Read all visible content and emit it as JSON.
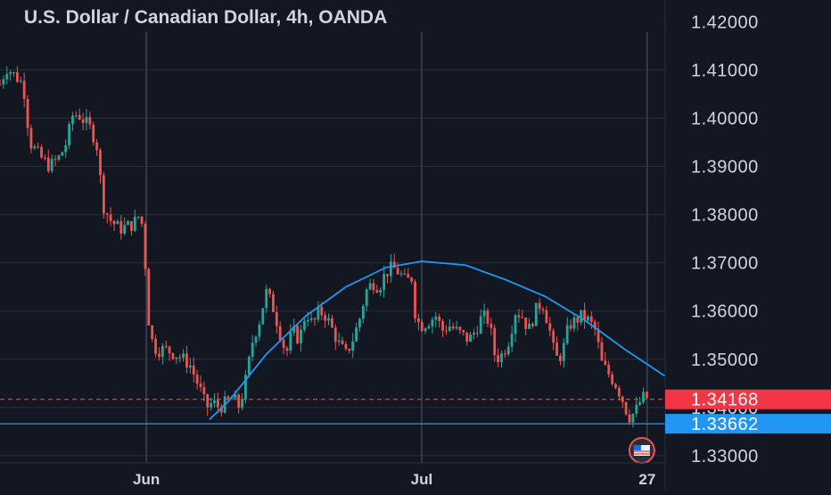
{
  "chart_data": {
    "type": "candlestick",
    "title": "U.S. Dollar / Canadian Dollar, 4h, OANDA",
    "y_axis": {
      "ticks": [
        "1.42000",
        "1.41000",
        "1.40000",
        "1.39000",
        "1.38000",
        "1.37000",
        "1.36000",
        "1.35000",
        "1.34000",
        "1.33000"
      ],
      "ylim": [
        1.3285,
        1.4245
      ]
    },
    "x_axis": {
      "ticks": [
        {
          "label": "Jun",
          "position": 0.22
        },
        {
          "label": "Jul",
          "position": 0.634
        },
        {
          "label": "27",
          "position": 0.973
        }
      ]
    },
    "grid": true,
    "vertical_grid_positions": [
      0.22,
      0.634,
      0.973
    ],
    "series": [
      {
        "name": "",
        "close_path": [
          [
            0.0,
            1.407
          ],
          [
            0.01,
            1.4105
          ],
          [
            0.025,
            1.4085
          ],
          [
            0.035,
            1.407
          ],
          [
            0.045,
            1.395
          ],
          [
            0.06,
            1.392
          ],
          [
            0.075,
            1.39
          ],
          [
            0.09,
            1.392
          ],
          [
            0.1,
            1.395
          ],
          [
            0.11,
            1.401
          ],
          [
            0.12,
            1.4005
          ],
          [
            0.135,
            1.398
          ],
          [
            0.145,
            1.395
          ],
          [
            0.155,
            1.382
          ],
          [
            0.165,
            1.379
          ],
          [
            0.18,
            1.377
          ],
          [
            0.2,
            1.378
          ],
          [
            0.21,
            1.38
          ],
          [
            0.215,
            1.377
          ],
          [
            0.225,
            1.355
          ],
          [
            0.235,
            1.352
          ],
          [
            0.25,
            1.352
          ],
          [
            0.265,
            1.351
          ],
          [
            0.285,
            1.349
          ],
          [
            0.3,
            1.344
          ],
          [
            0.31,
            1.34
          ],
          [
            0.32,
            1.341
          ],
          [
            0.33,
            1.34
          ],
          [
            0.34,
            1.341
          ],
          [
            0.35,
            1.342
          ],
          [
            0.36,
            1.34
          ],
          [
            0.37,
            1.346
          ],
          [
            0.38,
            1.354
          ],
          [
            0.39,
            1.358
          ],
          [
            0.4,
            1.364
          ],
          [
            0.41,
            1.361
          ],
          [
            0.42,
            1.356
          ],
          [
            0.43,
            1.351
          ],
          [
            0.44,
            1.356
          ],
          [
            0.45,
            1.354
          ],
          [
            0.46,
            1.36
          ],
          [
            0.47,
            1.357
          ],
          [
            0.48,
            1.36
          ],
          [
            0.49,
            1.359
          ],
          [
            0.5,
            1.356
          ],
          [
            0.51,
            1.353
          ],
          [
            0.52,
            1.351
          ],
          [
            0.53,
            1.354
          ],
          [
            0.54,
            1.358
          ],
          [
            0.55,
            1.364
          ],
          [
            0.56,
            1.366
          ],
          [
            0.57,
            1.365
          ],
          [
            0.58,
            1.368
          ],
          [
            0.59,
            1.369
          ],
          [
            0.6,
            1.368
          ],
          [
            0.61,
            1.366
          ],
          [
            0.62,
            1.367
          ],
          [
            0.625,
            1.358
          ],
          [
            0.635,
            1.357
          ],
          [
            0.645,
            1.358
          ],
          [
            0.655,
            1.359
          ],
          [
            0.665,
            1.356
          ],
          [
            0.675,
            1.357
          ],
          [
            0.685,
            1.356
          ],
          [
            0.695,
            1.355
          ],
          [
            0.705,
            1.354
          ],
          [
            0.715,
            1.356
          ],
          [
            0.725,
            1.359
          ],
          [
            0.735,
            1.358
          ],
          [
            0.745,
            1.35
          ],
          [
            0.755,
            1.351
          ],
          [
            0.765,
            1.354
          ],
          [
            0.775,
            1.36
          ],
          [
            0.785,
            1.359
          ],
          [
            0.795,
            1.356
          ],
          [
            0.805,
            1.36
          ],
          [
            0.815,
            1.362
          ],
          [
            0.825,
            1.357
          ],
          [
            0.835,
            1.35
          ],
          [
            0.845,
            1.351
          ],
          [
            0.855,
            1.357
          ],
          [
            0.865,
            1.358
          ],
          [
            0.875,
            1.359
          ],
          [
            0.885,
            1.358
          ],
          [
            0.895,
            1.356
          ],
          [
            0.905,
            1.349
          ],
          [
            0.915,
            1.347
          ],
          [
            0.925,
            1.345
          ],
          [
            0.935,
            1.342
          ],
          [
            0.945,
            1.338
          ],
          [
            0.955,
            1.339
          ],
          [
            0.965,
            1.342
          ],
          [
            0.973,
            1.342
          ]
        ]
      }
    ],
    "trendline": {
      "color": "#2196f3",
      "x": [
        0.315,
        0.345,
        0.4,
        0.46,
        0.52,
        0.58,
        0.634,
        0.7,
        0.76,
        0.82,
        0.88,
        0.94,
        1.0
      ],
      "y": [
        1.3375,
        1.3415,
        1.351,
        1.359,
        1.365,
        1.369,
        1.3703,
        1.3695,
        1.3665,
        1.363,
        1.358,
        1.352,
        1.3465
      ]
    },
    "horizontal_lines": [
      {
        "price": 1.33662,
        "label": "1.33662",
        "color": "#2196f3",
        "style": "solid"
      },
      {
        "price": 1.34168,
        "label": "1.34168",
        "color": "#f23645",
        "style": "dashed"
      }
    ],
    "colors": {
      "up": "#26a69a",
      "down": "#ef5350",
      "background": "#131722",
      "grid": "#2a2e39"
    }
  }
}
